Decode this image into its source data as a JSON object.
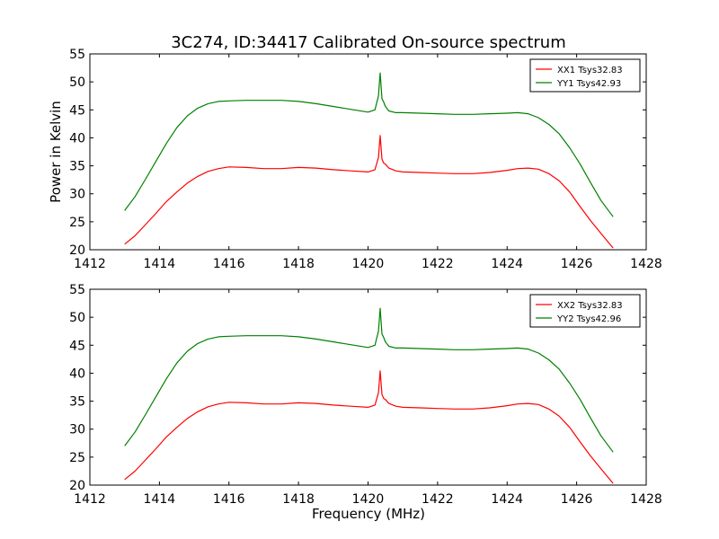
{
  "figure": {
    "title": "3C274, ID:34417 Calibrated On-source spectrum",
    "xlabel": "Frequency (MHz)"
  },
  "chart_data": [
    {
      "type": "line",
      "title": "3C274, ID:34417 Calibrated On-source spectrum",
      "xlabel": "",
      "ylabel": "Power in Kelvin",
      "xlim": [
        1412,
        1428
      ],
      "ylim": [
        20,
        55
      ],
      "xticks": [
        1412,
        1414,
        1416,
        1418,
        1420,
        1422,
        1424,
        1426,
        1428
      ],
      "yticks": [
        20,
        25,
        30,
        35,
        40,
        45,
        50,
        55
      ],
      "grid": false,
      "legend": "top-right",
      "series": [
        {
          "name": "XX1 Tsys32.83",
          "color": "#ff0000",
          "x": [
            1413.0,
            1413.3,
            1413.6,
            1413.9,
            1414.2,
            1414.5,
            1414.8,
            1415.1,
            1415.4,
            1415.7,
            1416.0,
            1416.5,
            1417.0,
            1417.5,
            1418.0,
            1418.5,
            1419.0,
            1419.5,
            1420.0,
            1420.2,
            1420.3,
            1420.35,
            1420.4,
            1420.45,
            1420.5,
            1420.6,
            1420.8,
            1421.0,
            1421.5,
            1422.0,
            1422.5,
            1423.0,
            1423.5,
            1424.0,
            1424.3,
            1424.6,
            1424.9,
            1425.2,
            1425.5,
            1425.8,
            1426.1,
            1426.4,
            1426.7,
            1427.05
          ],
          "y": [
            21.0,
            22.5,
            24.5,
            26.5,
            28.6,
            30.3,
            31.9,
            33.1,
            34.0,
            34.5,
            34.8,
            34.7,
            34.5,
            34.5,
            34.7,
            34.6,
            34.3,
            34.1,
            33.9,
            34.3,
            36.5,
            40.4,
            36.2,
            35.5,
            35.3,
            34.6,
            34.1,
            33.9,
            33.8,
            33.7,
            33.6,
            33.6,
            33.8,
            34.2,
            34.5,
            34.6,
            34.4,
            33.6,
            32.3,
            30.3,
            27.7,
            25.2,
            22.9,
            20.3
          ]
        },
        {
          "name": "YY1 Tsys42.93",
          "color": "#008000",
          "x": [
            1413.0,
            1413.3,
            1413.6,
            1413.9,
            1414.2,
            1414.5,
            1414.8,
            1415.1,
            1415.4,
            1415.7,
            1416.0,
            1416.5,
            1417.0,
            1417.5,
            1418.0,
            1418.5,
            1419.0,
            1419.5,
            1420.0,
            1420.2,
            1420.3,
            1420.35,
            1420.4,
            1420.45,
            1420.5,
            1420.6,
            1420.8,
            1421.0,
            1421.5,
            1422.0,
            1422.5,
            1423.0,
            1423.5,
            1424.0,
            1424.3,
            1424.6,
            1424.9,
            1425.2,
            1425.5,
            1425.8,
            1426.1,
            1426.4,
            1426.7,
            1427.05
          ],
          "y": [
            27.0,
            29.5,
            32.6,
            35.8,
            39.0,
            41.8,
            43.9,
            45.3,
            46.1,
            46.5,
            46.6,
            46.7,
            46.7,
            46.7,
            46.5,
            46.1,
            45.6,
            45.1,
            44.6,
            45.0,
            47.5,
            51.6,
            47.0,
            46.4,
            45.6,
            44.8,
            44.5,
            44.5,
            44.4,
            44.3,
            44.2,
            44.2,
            44.3,
            44.4,
            44.5,
            44.3,
            43.6,
            42.4,
            40.7,
            38.2,
            35.3,
            32.0,
            28.8,
            25.9
          ]
        }
      ]
    },
    {
      "type": "line",
      "title": "",
      "xlabel": "Frequency (MHz)",
      "ylabel": "",
      "xlim": [
        1412,
        1428
      ],
      "ylim": [
        20,
        55
      ],
      "xticks": [
        1412,
        1414,
        1416,
        1418,
        1420,
        1422,
        1424,
        1426,
        1428
      ],
      "yticks": [
        20,
        25,
        30,
        35,
        40,
        45,
        50,
        55
      ],
      "grid": false,
      "legend": "top-right",
      "series": [
        {
          "name": "XX2 Tsys32.83",
          "color": "#ff0000",
          "x": [
            1413.0,
            1413.3,
            1413.6,
            1413.9,
            1414.2,
            1414.5,
            1414.8,
            1415.1,
            1415.4,
            1415.7,
            1416.0,
            1416.5,
            1417.0,
            1417.5,
            1418.0,
            1418.5,
            1419.0,
            1419.5,
            1420.0,
            1420.2,
            1420.3,
            1420.35,
            1420.4,
            1420.45,
            1420.5,
            1420.6,
            1420.8,
            1421.0,
            1421.5,
            1422.0,
            1422.5,
            1423.0,
            1423.5,
            1424.0,
            1424.3,
            1424.6,
            1424.9,
            1425.2,
            1425.5,
            1425.8,
            1426.1,
            1426.4,
            1426.7,
            1427.05
          ],
          "y": [
            21.0,
            22.5,
            24.5,
            26.5,
            28.6,
            30.3,
            31.9,
            33.1,
            34.0,
            34.5,
            34.8,
            34.7,
            34.5,
            34.5,
            34.7,
            34.6,
            34.3,
            34.1,
            33.9,
            34.3,
            36.5,
            40.4,
            36.2,
            35.5,
            35.3,
            34.6,
            34.1,
            33.9,
            33.8,
            33.7,
            33.6,
            33.6,
            33.8,
            34.2,
            34.5,
            34.6,
            34.4,
            33.6,
            32.3,
            30.3,
            27.7,
            25.2,
            22.9,
            20.3
          ]
        },
        {
          "name": "YY2 Tsys42.96",
          "color": "#008000",
          "x": [
            1413.0,
            1413.3,
            1413.6,
            1413.9,
            1414.2,
            1414.5,
            1414.8,
            1415.1,
            1415.4,
            1415.7,
            1416.0,
            1416.5,
            1417.0,
            1417.5,
            1418.0,
            1418.5,
            1419.0,
            1419.5,
            1420.0,
            1420.2,
            1420.3,
            1420.35,
            1420.4,
            1420.45,
            1420.5,
            1420.6,
            1420.8,
            1421.0,
            1421.5,
            1422.0,
            1422.5,
            1423.0,
            1423.5,
            1424.0,
            1424.3,
            1424.6,
            1424.9,
            1425.2,
            1425.5,
            1425.8,
            1426.1,
            1426.4,
            1426.7,
            1427.05
          ],
          "y": [
            27.0,
            29.5,
            32.6,
            35.8,
            39.0,
            41.8,
            43.9,
            45.3,
            46.1,
            46.5,
            46.6,
            46.7,
            46.7,
            46.7,
            46.5,
            46.1,
            45.6,
            45.1,
            44.6,
            45.0,
            47.5,
            51.6,
            47.0,
            46.4,
            45.6,
            44.8,
            44.5,
            44.5,
            44.4,
            44.3,
            44.2,
            44.2,
            44.3,
            44.4,
            44.5,
            44.3,
            43.6,
            42.4,
            40.7,
            38.2,
            35.3,
            32.0,
            28.8,
            25.9
          ]
        }
      ]
    }
  ]
}
